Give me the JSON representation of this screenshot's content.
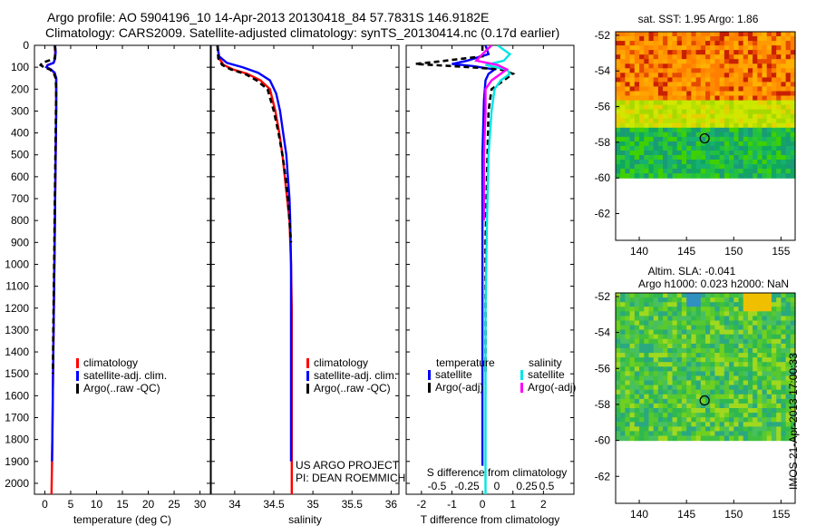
{
  "header": {
    "line1": "Argo profile: AO 5904196_10 14-Apr-2013 20130418_84 57.7831S 146.9182E",
    "line2": "Climatology: CARS2009. Satellite-adjusted climatology: synTS_20130414.nc (0.17d earlier)"
  },
  "credit": "IMOS 21-Apr-2013 17:00:33",
  "colors": {
    "red": "#ff0000",
    "blue": "#0000ff",
    "black": "#000000",
    "cyan": "#00e5e5",
    "magenta": "#ff00ff"
  },
  "chart_data": [
    {
      "type": "line",
      "id": "temperature",
      "xlabel": "temperature (deg C)",
      "ylabel": "",
      "xlim": [
        -2,
        32
      ],
      "ylim": [
        0,
        2050
      ],
      "y_inverted": true,
      "x_ticks": [
        "0",
        "5",
        "10",
        "15",
        "20",
        "25",
        "30"
      ],
      "y_ticks": [
        "0",
        "100",
        "200",
        "300",
        "400",
        "500",
        "600",
        "700",
        "800",
        "900",
        "1000",
        "1100",
        "1200",
        "1300",
        "1400",
        "1500",
        "1600",
        "1700",
        "1800",
        "1900",
        "2000"
      ],
      "legend": [
        "climatology",
        "satellite-adj. clim.",
        "Argo(..raw -QC)"
      ],
      "series": [
        {
          "name": "climatology",
          "color": "#ff0000",
          "dash": false,
          "x": [
            1.9,
            2.0,
            2.0,
            1.7,
            0.5,
            0.3,
            1.2,
            1.8,
            2.2,
            2.2,
            2.2,
            2.1,
            2.0,
            1.9,
            1.8,
            1.7,
            1.6,
            1.5,
            1.4,
            1.3
          ],
          "y": [
            0,
            30,
            60,
            80,
            90,
            100,
            110,
            125,
            150,
            200,
            300,
            500,
            700,
            900,
            1100,
            1300,
            1500,
            1700,
            1900,
            2050
          ]
        },
        {
          "name": "satellite-adj. clim.",
          "color": "#0000ff",
          "dash": false,
          "x": [
            2.0,
            2.1,
            2.0,
            1.7,
            0.6,
            0.3,
            1.2,
            1.9,
            2.2,
            2.2,
            2.2,
            2.1,
            2.0,
            1.9,
            1.8,
            1.7,
            1.6,
            1.5,
            1.4
          ],
          "y": [
            0,
            30,
            60,
            80,
            90,
            100,
            110,
            125,
            150,
            200,
            300,
            500,
            700,
            900,
            1100,
            1300,
            1500,
            1700,
            1900
          ]
        },
        {
          "name": "Argo(..raw -QC)",
          "color": "#000000",
          "dash": true,
          "x": [
            1.95,
            2.05,
            1.9,
            -0.5,
            -0.8,
            -0.2,
            1.0,
            1.7,
            2.1,
            2.2,
            2.15,
            2.05,
            1.95,
            1.85,
            1.75,
            1.65,
            1.55
          ],
          "y": [
            0,
            30,
            60,
            80,
            90,
            100,
            110,
            125,
            150,
            200,
            300,
            500,
            700,
            900,
            1100,
            1300,
            1500
          ]
        }
      ]
    },
    {
      "type": "line",
      "id": "salinity",
      "xlabel": "salinity",
      "xlim": [
        33.7,
        36.1
      ],
      "ylim": [
        0,
        2050
      ],
      "y_inverted": true,
      "x_ticks": [
        "34",
        "34.5",
        "35",
        "35.5",
        "36"
      ],
      "legend": [
        "climatology",
        "satellite-adj. clim.",
        "Argo(..raw -QC)"
      ],
      "annotation": [
        "US ARGO PROJECT",
        "PI: DEAN ROEMMICH"
      ],
      "series": [
        {
          "name": "climatology",
          "color": "#ff0000",
          "dash": false,
          "x": [
            33.78,
            33.8,
            33.86,
            33.98,
            34.16,
            34.33,
            34.45,
            34.52,
            34.57,
            34.61,
            34.64,
            34.67,
            34.7,
            34.72,
            34.73,
            34.73,
            34.73,
            34.73,
            34.73
          ],
          "y": [
            0,
            60,
            90,
            110,
            130,
            160,
            200,
            300,
            400,
            500,
            600,
            700,
            800,
            1000,
            1200,
            1400,
            1600,
            1800,
            2050
          ]
        },
        {
          "name": "satellite-adj. clim.",
          "color": "#0000ff",
          "dash": false,
          "x": [
            33.78,
            33.8,
            33.9,
            34.1,
            34.3,
            34.45,
            34.53,
            34.58,
            34.62,
            34.66,
            34.68,
            34.7,
            34.71,
            34.72,
            34.72,
            34.72,
            34.72,
            34.72
          ],
          "y": [
            0,
            50,
            80,
            100,
            125,
            160,
            220,
            300,
            400,
            500,
            600,
            700,
            800,
            1000,
            1200,
            1400,
            1600,
            1900
          ]
        },
        {
          "name": "Argo(..raw -QC)",
          "color": "#000000",
          "dash": true,
          "x": [
            33.78,
            33.79,
            33.84,
            33.95,
            34.13,
            34.28,
            34.42,
            34.5,
            34.56,
            34.61,
            34.65,
            34.68,
            34.7,
            34.72
          ],
          "y": [
            0,
            60,
            90,
            110,
            130,
            160,
            200,
            300,
            400,
            500,
            600,
            700,
            800,
            900
          ]
        }
      ]
    },
    {
      "type": "line",
      "id": "difference",
      "xlabel": "T difference from climatology",
      "xlabel2": "S difference from climatology",
      "xlim": [
        -2.5,
        3
      ],
      "ylim": [
        0,
        2050
      ],
      "y_inverted": true,
      "x_ticks": [
        "-2",
        "-1",
        "0",
        "1",
        "2"
      ],
      "s_ticks": [
        "-0.5",
        "-0.25",
        "0",
        "0.25",
        "0.5"
      ],
      "legend_groups": [
        {
          "title": "temperature",
          "items": [
            "satellite",
            "Argo(-adj)"
          ]
        },
        {
          "title": "salinity",
          "items": [
            "satellite",
            "Argo(-adj)"
          ]
        }
      ],
      "series": [
        {
          "name": "temperature satellite",
          "color": "#0000ff",
          "dash": false,
          "x": [
            0.1,
            0.2,
            -0.5,
            -1.0,
            -0.3,
            0.4,
            0.2,
            0.1,
            0.05,
            0.0,
            0.0,
            0.0,
            0.0,
            0.0
          ],
          "y": [
            0,
            40,
            70,
            85,
            95,
            110,
            130,
            160,
            250,
            500,
            800,
            1200,
            1500,
            1920
          ]
        },
        {
          "name": "temperature Argo(-adj)",
          "color": "#000000",
          "dash": true,
          "x": [
            0,
            0.0,
            -1.5,
            -2.2,
            -1.0,
            -0.4,
            0.6,
            1.0,
            0.8,
            0.3,
            0.2,
            0.15,
            0.1,
            0.1,
            0.1
          ],
          "y": [
            0,
            50,
            75,
            85,
            95,
            100,
            110,
            130,
            150,
            200,
            300,
            600,
            900,
            1200,
            1500
          ]
        },
        {
          "name": "salinity satellite",
          "color": "#00e5e5",
          "dash": false,
          "x": [
            0.5,
            0.9,
            0.7,
            0.1,
            0.8,
            0.9,
            0.6,
            0.4,
            0.3,
            0.2,
            0.15,
            0.1,
            0.1,
            0.1
          ],
          "y": [
            0,
            40,
            70,
            90,
            110,
            130,
            160,
            200,
            300,
            500,
            800,
            1200,
            1600,
            2050
          ]
        },
        {
          "name": "salinity Argo(-adj)",
          "color": "#ff00ff",
          "dash": false,
          "x": [
            0.3,
            0.0,
            -0.2,
            0.5,
            0.8,
            0.6,
            0.3,
            0.1,
            0.1,
            0.05,
            0.05
          ],
          "y": [
            0,
            40,
            70,
            90,
            110,
            130,
            160,
            200,
            300,
            500,
            800
          ]
        }
      ]
    },
    {
      "type": "heatmap",
      "id": "sst-map",
      "title": "sat. SST: 1.95 Argo: 1.86",
      "xlim": [
        137.5,
        156.5
      ],
      "ylim": [
        -63.5,
        -51.8
      ],
      "x_ticks": [
        140,
        145,
        150,
        155
      ],
      "y_ticks": [
        -52,
        -54,
        -56,
        -58,
        -60,
        -62
      ],
      "data_extent_y": [
        -60,
        -51.8
      ],
      "marker": {
        "lon": 146.92,
        "lat": -57.78
      }
    },
    {
      "type": "heatmap",
      "id": "sla-map",
      "title": "Altim. SLA: -0.041",
      "subtitle": "Argo h1000: 0.023 h2000: NaN",
      "xlim": [
        137.5,
        156.5
      ],
      "ylim": [
        -63.5,
        -51.8
      ],
      "x_ticks": [
        140,
        145,
        150,
        155
      ],
      "y_ticks": [
        -52,
        -54,
        -56,
        -58,
        -60,
        -62
      ],
      "data_extent_y": [
        -60,
        -51.8
      ],
      "marker": {
        "lon": 146.92,
        "lat": -57.78
      }
    }
  ]
}
